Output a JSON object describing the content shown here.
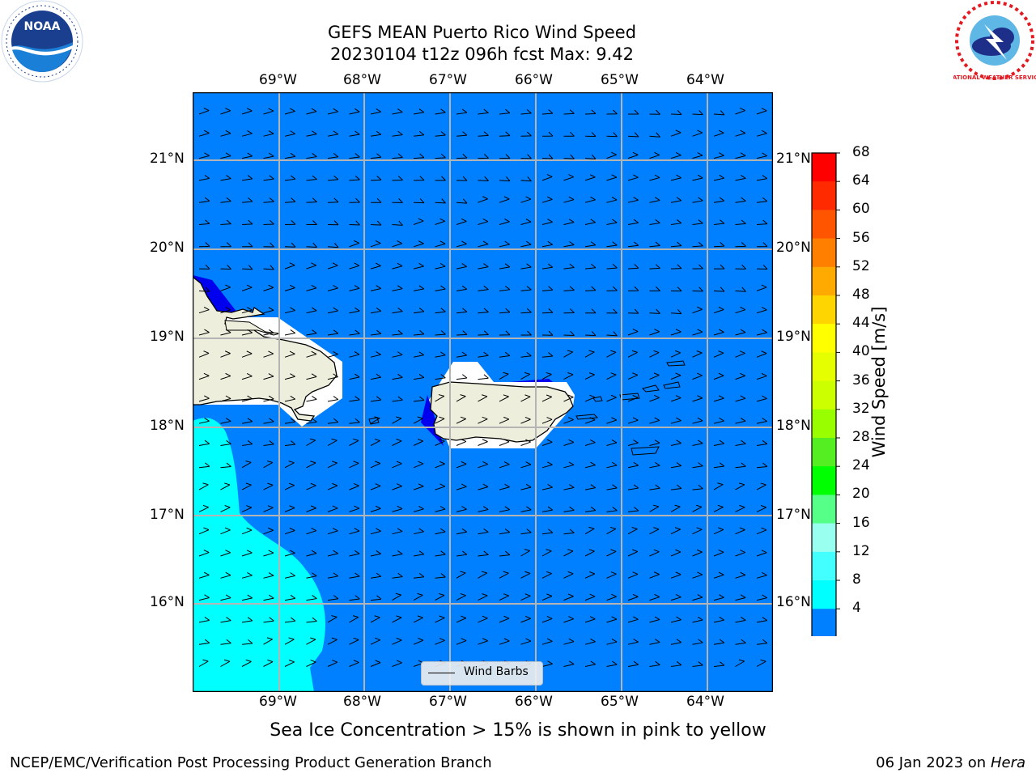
{
  "title": {
    "line1": "GEFS MEAN Puerto Rico Wind Speed",
    "line2": "20230104 t12z 096h fcst   Max: 9.42"
  },
  "logos": {
    "noaa_text": "NOAA",
    "nws_text": "NATIONAL WEATHER SERVICE"
  },
  "map": {
    "lon_labels": [
      "69°W",
      "68°W",
      "67°W",
      "66°W",
      "65°W",
      "64°W"
    ],
    "lat_labels": [
      "21°N",
      "20°N",
      "19°N",
      "18°N",
      "17°N",
      "16°N"
    ],
    "ocean_color": "#0080ff",
    "land_color": "#eeeedc",
    "band_8_12_color": "#00ffff",
    "band_below_4_color": "#0000ee"
  },
  "legend": {
    "label": "Wind Barbs"
  },
  "colorbar": {
    "label": "Wind Speed [m/s]",
    "ticks": [
      "68",
      "64",
      "60",
      "56",
      "52",
      "48",
      "44",
      "40",
      "36",
      "32",
      "28",
      "24",
      "20",
      "16",
      "12",
      "8",
      "4"
    ],
    "colors": [
      "#ff0000",
      "#ff2a00",
      "#ff5500",
      "#ff8000",
      "#ffaa00",
      "#ffd500",
      "#ffff00",
      "#e6ff00",
      "#ccff00",
      "#99ff00",
      "#55ee22",
      "#00ff00",
      "#55ff88",
      "#99ffee",
      "#44ffff",
      "#00ffff",
      "#0080ff"
    ],
    "under_color": "#0000ee"
  },
  "caption": "Sea Ice Concentration > 15% is shown in pink to yellow",
  "footer": {
    "left": "NCEP/EMC/Verification Post Processing Product Generation Branch",
    "date": "06 Jan 2023 on ",
    "machine": "Hera"
  }
}
